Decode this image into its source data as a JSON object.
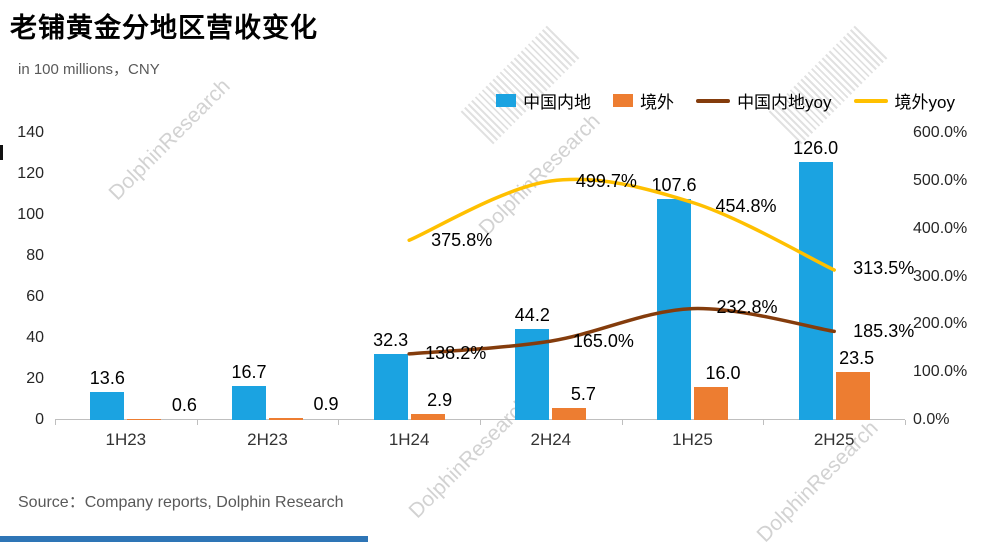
{
  "title": "老铺黄金分地区营收变化",
  "subtitle": "in 100 millions，CNY",
  "source": "Source：Company reports, Dolphin Research",
  "watermark": "DolphinResearch",
  "chart_data": {
    "type": "combo",
    "title": "老铺黄金分地区营收变化",
    "categories": [
      "1H23",
      "2H23",
      "1H24",
      "2H24",
      "1H25",
      "2H25"
    ],
    "series": [
      {
        "name": "中国内地",
        "type": "bar",
        "axis": "left",
        "color": "#1BA3E1",
        "values": [
          13.6,
          16.7,
          32.3,
          44.2,
          107.6,
          126.0
        ],
        "labels": [
          "13.6",
          "16.7",
          "32.3",
          "44.2",
          "107.6",
          "126.0"
        ]
      },
      {
        "name": "境外",
        "type": "bar",
        "axis": "left",
        "color": "#ED7D31",
        "values": [
          0.6,
          0.9,
          2.9,
          5.7,
          16.0,
          23.5
        ],
        "labels": [
          "0.6",
          "0.9",
          "2.9",
          "5.7",
          "16.0",
          "23.5"
        ]
      },
      {
        "name": "中国内地yoy",
        "type": "line",
        "axis": "right",
        "color": "#843C0C",
        "values": [
          null,
          null,
          138.2,
          165.0,
          232.8,
          185.3
        ],
        "labels": [
          null,
          null,
          "138.2%",
          "165.0%",
          "232.8%",
          "185.3%"
        ]
      },
      {
        "name": "境外yoy",
        "type": "line",
        "axis": "right",
        "color": "#FFC000",
        "values": [
          null,
          null,
          375.8,
          499.7,
          454.8,
          313.5
        ],
        "labels": [
          null,
          null,
          "375.8%",
          "499.7%",
          "454.8%",
          "313.5%"
        ]
      }
    ],
    "left_axis": {
      "min": 0,
      "max": 140,
      "step": 20,
      "ticks": [
        "0",
        "20",
        "40",
        "60",
        "80",
        "100",
        "120",
        "140"
      ]
    },
    "right_axis": {
      "min": 0,
      "max": 600,
      "step": 100,
      "ticks": [
        "0.0%",
        "100.0%",
        "200.0%",
        "300.0%",
        "400.0%",
        "500.0%",
        "600.0%"
      ]
    },
    "legend_position": "top-right",
    "grid": false
  }
}
